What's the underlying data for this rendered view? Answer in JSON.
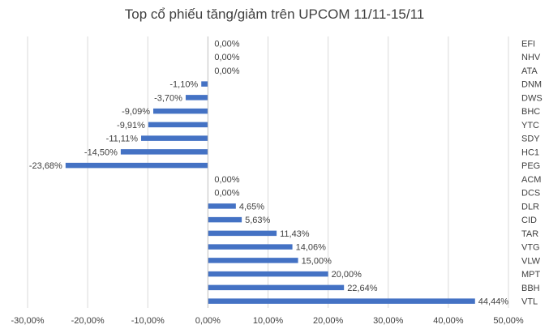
{
  "chart_data": {
    "type": "bar",
    "orientation": "horizontal",
    "title": "Top cổ phiếu tăng/giảm trên UPCOM 11/11-15/11",
    "xlabel": "",
    "ylabel": "",
    "categories": [
      "EFI",
      "NHV",
      "ATA",
      "DNM",
      "DWS",
      "BHC",
      "YTC",
      "SDY",
      "HC1",
      "PEG",
      "ACM",
      "DCS",
      "DLR",
      "CID",
      "TAR",
      "VTG",
      "VLW",
      "MPT",
      "BBH",
      "VTL"
    ],
    "values": [
      0,
      0,
      0,
      -1.1,
      -3.7,
      -9.09,
      -9.91,
      -11.11,
      -14.5,
      -23.68,
      0,
      0,
      4.65,
      5.63,
      11.43,
      14.06,
      15.0,
      20.0,
      22.64,
      44.44
    ],
    "data_labels": [
      "0,00%",
      "0,00%",
      "0,00%",
      "-1,10%",
      "-3,70%",
      "-9,09%",
      "-9,91%",
      "-11,11%",
      "-14,50%",
      "-23,68%",
      "0,00%",
      "0,00%",
      "4,65%",
      "5,63%",
      "11,43%",
      "14,06%",
      "15,00%",
      "20,00%",
      "22,64%",
      "44,44%"
    ],
    "xlim": [
      -30,
      50
    ],
    "x_ticks": [
      -30,
      -20,
      -10,
      0,
      10,
      20,
      30,
      40,
      50
    ],
    "x_tick_labels": [
      "-30,00%",
      "-20,00%",
      "-10,00%",
      "0,00%",
      "10,00%",
      "20,00%",
      "30,00%",
      "40,00%",
      "50,00%"
    ],
    "grid": true,
    "legend": "none",
    "bar_color": "#4472c4",
    "grid_color": "#d9d9d9"
  }
}
